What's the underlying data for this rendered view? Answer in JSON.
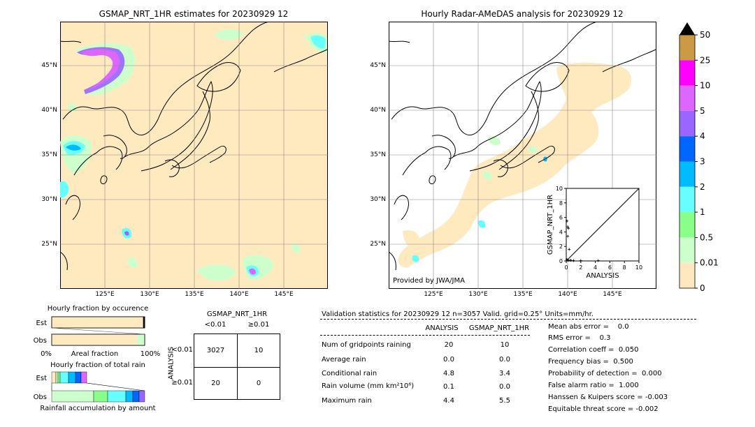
{
  "left_map": {
    "title": "GSMAP_NRT_1HR estimates for 20230929 12",
    "lat_labels": [
      "45°N",
      "40°N",
      "35°N",
      "30°N",
      "25°N"
    ],
    "lon_labels": [
      "125°E",
      "130°E",
      "135°E",
      "140°E",
      "145°E"
    ]
  },
  "right_map": {
    "title": "Hourly Radar-AMeDAS analysis for 20230929 12",
    "lat_labels": [
      "45°N",
      "40°N",
      "35°N",
      "30°N",
      "25°N"
    ],
    "lon_labels": [
      "125°E",
      "130°E",
      "135°E",
      "140°E",
      "145°E"
    ],
    "credit": "Provided by JWA/JMA"
  },
  "colorbar": {
    "levels": [
      "50",
      "25",
      "10",
      "5",
      "4",
      "3",
      "2",
      "1",
      "0.5",
      "0.01",
      "0"
    ],
    "colors": [
      "#cc9944",
      "#ff00ff",
      "#dd66ff",
      "#9966ff",
      "#0066ff",
      "#00bbff",
      "#66ffff",
      "#88ff88",
      "#ccffcc",
      "#ffe8c0"
    ]
  },
  "chart_data": [
    {
      "type": "scatter",
      "title": "",
      "xlabel": "ANALYSIS",
      "ylabel": "GSMAP_NRT_1HR",
      "xlim": [
        0,
        10
      ],
      "ylim": [
        0,
        10
      ],
      "x_ticks": [
        "0",
        "2",
        "4",
        "6",
        "8",
        "10"
      ],
      "y_ticks": [
        "0",
        "2",
        "4",
        "6",
        "8",
        "10"
      ],
      "points": [
        {
          "x": 0.1,
          "y": 5.5
        },
        {
          "x": 0.2,
          "y": 4.7
        },
        {
          "x": 0.3,
          "y": 4.5
        },
        {
          "x": 0.2,
          "y": 3.4
        },
        {
          "x": 0.4,
          "y": 1.6
        },
        {
          "x": 0.1,
          "y": 0.2
        },
        {
          "x": 0.3,
          "y": 0.1
        },
        {
          "x": 0.6,
          "y": 0.1
        },
        {
          "x": 1.0,
          "y": 0.05
        },
        {
          "x": 2.0,
          "y": 0.05
        },
        {
          "x": 4.4,
          "y": 0.05
        }
      ],
      "reference_line": {
        "from": [
          0,
          0
        ],
        "to": [
          10,
          10
        ]
      }
    },
    {
      "type": "bar",
      "title": "Hourly fraction by occurence",
      "rows": [
        "Est",
        "Obs"
      ],
      "x_axis": {
        "left": "0%",
        "center": "Areal fraction",
        "right": "100%"
      },
      "values": {
        "Est": 0.99,
        "Obs": 0.92
      }
    },
    {
      "type": "bar",
      "title": "Hourly fraction of total rain",
      "rows": [
        "Est",
        "Obs"
      ],
      "xlabel": "Rainfall accumulation by amount"
    }
  ],
  "contingency": {
    "title": "GSMAP_NRT_1HR",
    "col_headers": [
      "<0.01",
      "≥0.01"
    ],
    "row_axis": "ANALYSIS",
    "row_headers": [
      "<0.01",
      "≥0.01"
    ],
    "cells": [
      [
        "3027",
        "10"
      ],
      [
        "20",
        "0"
      ]
    ]
  },
  "validation": {
    "header": "Validation statistics for 20230929 12  n=3057 Valid. grid=0.25° Units=mm/hr.",
    "col_analysis": "ANALYSIS",
    "col_gsmap": "GSMAP_NRT_1HR",
    "rows": [
      {
        "label": "Num of gridpoints raining",
        "a": "20",
        "g": "10"
      },
      {
        "label": "Average rain",
        "a": "0.0",
        "g": "0.0"
      },
      {
        "label": "Conditional rain",
        "a": "4.8",
        "g": "3.4"
      },
      {
        "label": "Rain volume (mm km²10⁶)",
        "a": "0.1",
        "g": "0.0"
      },
      {
        "label": "Maximum rain",
        "a": "4.4",
        "g": "5.5"
      }
    ],
    "scores": [
      "Mean abs error =    0.0",
      "RMS error =    0.3",
      "Correlation coeff =  0.050",
      "Frequency bias =  0.500",
      "Probability of detection =  0.000",
      "False alarm ratio =  1.000",
      "Hanssen & Kuipers score = -0.003",
      "Equitable threat score = -0.002"
    ]
  }
}
